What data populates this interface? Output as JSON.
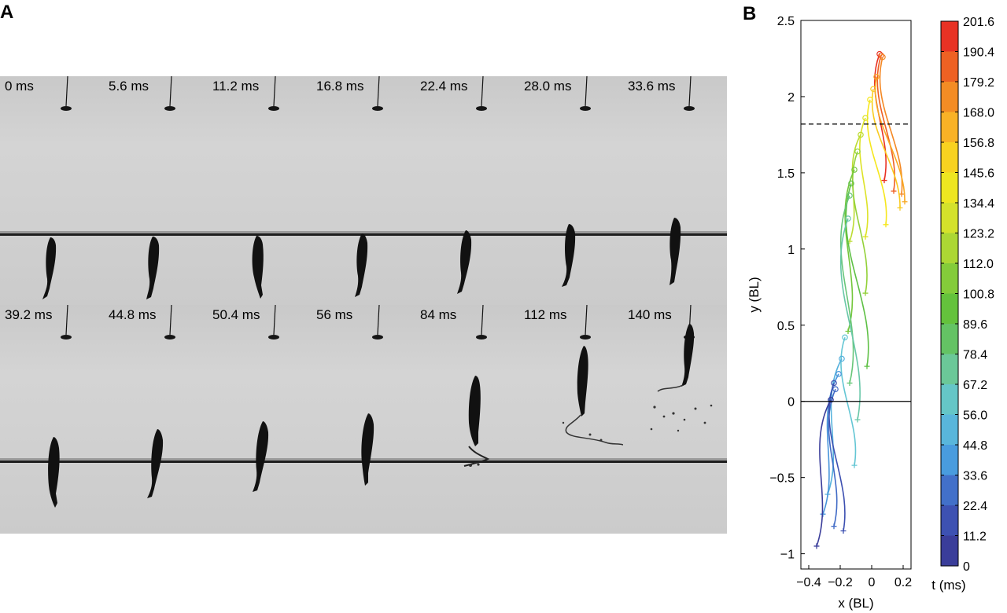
{
  "panels": {
    "a_label": "A",
    "b_label": "B"
  },
  "frames": {
    "top_row": [
      "0 ms",
      "5.6 ms",
      "11.2 ms",
      "16.8 ms",
      "22.4 ms",
      "28.0 ms",
      "33.6 ms"
    ],
    "bottom_row": [
      "39.2 ms",
      "44.8 ms",
      "50.4 ms",
      "56 ms",
      "84 ms",
      "112 ms",
      "140 ms"
    ]
  },
  "chart_data": {
    "type": "line",
    "xlabel": "x (BL)",
    "ylabel": "y (BL)",
    "xlim": [
      -0.45,
      0.25
    ],
    "ylim": [
      -1.1,
      2.5
    ],
    "xticks": [
      "−0.4",
      "−0.2",
      "0",
      "0.2"
    ],
    "xtick_values": [
      -0.4,
      -0.2,
      0,
      0.2
    ],
    "yticks": [
      "−1",
      "−0.5",
      "0",
      "0.5",
      "1",
      "1.5",
      "2",
      "2.5"
    ],
    "ytick_values": [
      -1,
      -0.5,
      0,
      0.5,
      1,
      1.5,
      2,
      2.5
    ],
    "reference_lines": [
      {
        "y": 0,
        "style": "solid"
      },
      {
        "y": 1.82,
        "style": "dashed"
      }
    ],
    "colorbar": {
      "label": "t (ms)",
      "ticks": [
        "201.6",
        "190.4",
        "179.2",
        "168.0",
        "156.8",
        "145.6",
        "134.4",
        "123.2",
        "112.0",
        "100.8",
        "89.6",
        "78.4",
        "67.2",
        "56.0",
        "44.8",
        "33.6",
        "22.4",
        "11.2",
        "0"
      ],
      "range": [
        0,
        201.6
      ],
      "colors": [
        "#3a3d9a",
        "#3f5cbf",
        "#4aa0e0",
        "#63c6d8",
        "#6cc890",
        "#5cbf3c",
        "#8ccf3a",
        "#cfe12d",
        "#f8e71c",
        "#f9b526",
        "#f27b23",
        "#e83224"
      ]
    },
    "series": [
      {
        "t": 201.6,
        "head": [
          0.05,
          2.28
        ],
        "tail": [
          0.08,
          1.45
        ]
      },
      {
        "t": 190.4,
        "head": [
          0.06,
          2.27
        ],
        "tail": [
          0.14,
          1.38
        ]
      },
      {
        "t": 179.2,
        "head": [
          0.07,
          2.26
        ],
        "tail": [
          0.19,
          1.36
        ]
      },
      {
        "t": 168.0,
        "head": [
          0.03,
          2.13
        ],
        "tail": [
          0.21,
          1.31
        ]
      },
      {
        "t": 156.8,
        "head": [
          0.01,
          2.05
        ],
        "tail": [
          0.18,
          1.27
        ]
      },
      {
        "t": 145.6,
        "head": [
          -0.01,
          1.98
        ],
        "tail": [
          0.09,
          1.16
        ]
      },
      {
        "t": 134.4,
        "head": [
          -0.04,
          1.86
        ],
        "tail": [
          -0.04,
          1.08
        ]
      },
      {
        "t": 123.2,
        "head": [
          -0.07,
          1.75
        ],
        "tail": [
          -0.14,
          1.05
        ]
      },
      {
        "t": 112.0,
        "head": [
          -0.09,
          1.64
        ],
        "tail": [
          -0.04,
          0.71
        ]
      },
      {
        "t": 100.8,
        "head": [
          -0.11,
          1.52
        ],
        "tail": [
          -0.15,
          0.46
        ]
      },
      {
        "t": 89.6,
        "head": [
          -0.13,
          1.43
        ],
        "tail": [
          -0.03,
          0.23
        ]
      },
      {
        "t": 78.4,
        "head": [
          -0.14,
          1.35
        ],
        "tail": [
          -0.14,
          0.12
        ]
      },
      {
        "t": 67.2,
        "head": [
          -0.15,
          1.2
        ],
        "tail": [
          -0.09,
          -0.12
        ]
      },
      {
        "t": 56.0,
        "head": [
          -0.17,
          0.42
        ],
        "tail": [
          -0.11,
          -0.42
        ]
      },
      {
        "t": 44.8,
        "head": [
          -0.19,
          0.28
        ],
        "tail": [
          -0.28,
          -0.61
        ]
      },
      {
        "t": 33.6,
        "head": [
          -0.21,
          0.18
        ],
        "tail": [
          -0.31,
          -0.74
        ]
      },
      {
        "t": 22.4,
        "head": [
          -0.23,
          0.08
        ],
        "tail": [
          -0.24,
          -0.82
        ]
      },
      {
        "t": 11.2,
        "head": [
          -0.24,
          0.12
        ],
        "tail": [
          -0.18,
          -0.85
        ]
      },
      {
        "t": 0,
        "head": [
          -0.26,
          0.01
        ],
        "tail": [
          -0.35,
          -0.95
        ]
      }
    ]
  }
}
